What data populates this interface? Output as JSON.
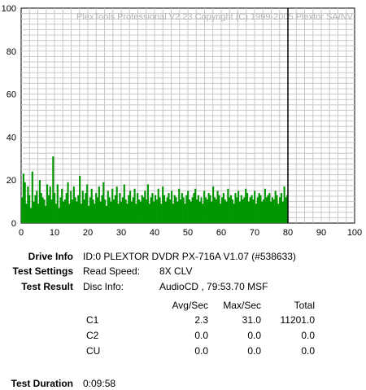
{
  "window": {
    "watermark": "PlexTools Professional V2.23 Copyright (C) 1999-2005 Plextor SA/NV"
  },
  "chart_data": {
    "type": "bar",
    "xlim": [
      0,
      100
    ],
    "ylim": [
      0,
      100
    ],
    "x_ticks": [
      0,
      10,
      20,
      30,
      40,
      50,
      60,
      70,
      80,
      90,
      100
    ],
    "y_ticks": [
      0,
      20,
      40,
      60,
      80,
      100
    ],
    "grid": true,
    "marker_line_x": 80,
    "series_color": "#009600",
    "marker_color": "#000000",
    "series": [
      {
        "values": [
          12,
          23,
          19,
          9,
          17,
          13,
          7,
          24,
          10,
          13,
          15,
          9,
          20,
          14,
          12,
          11,
          8,
          18,
          13,
          17,
          11,
          31,
          14,
          9,
          18,
          7,
          12,
          16,
          10,
          11,
          14,
          19,
          9,
          15,
          11,
          17,
          12,
          10,
          13,
          22,
          9,
          15,
          11,
          14,
          18,
          8,
          12,
          16,
          11,
          9,
          14,
          12,
          17,
          10,
          13,
          19,
          11,
          8,
          15,
          12,
          10,
          16,
          11,
          13,
          17,
          9,
          14,
          10,
          12,
          18,
          11,
          9,
          13,
          15,
          10,
          12,
          16,
          9,
          14,
          11,
          10,
          13,
          12,
          15,
          11,
          18,
          9,
          12,
          14,
          10,
          13,
          11,
          16,
          12,
          9,
          17,
          13,
          10,
          12,
          14,
          11,
          15,
          9,
          13,
          12,
          10,
          16,
          11,
          14,
          12,
          9,
          13,
          15,
          11,
          10,
          12,
          14,
          16,
          11,
          13,
          10,
          12,
          9,
          15,
          12,
          11,
          14,
          13,
          10,
          17,
          12,
          11,
          15,
          13,
          9,
          12,
          14,
          11,
          10,
          16,
          12,
          13,
          11,
          9,
          14,
          12,
          15,
          10,
          13,
          11,
          12,
          16,
          14,
          10,
          12,
          13,
          11,
          15,
          9,
          12,
          14,
          13,
          10,
          11,
          16,
          12,
          13,
          14,
          10,
          12,
          11,
          15,
          13,
          9,
          12,
          14,
          10,
          17,
          12,
          13
        ]
      }
    ]
  },
  "info": {
    "drive_info_label": "Drive Info",
    "drive_info_value": "ID:0 PLEXTOR DVDR PX-716A V1.07 (#538633)",
    "test_settings_label": "Test Settings",
    "read_speed_label": "Read Speed:",
    "read_speed_value": "8X CLV",
    "test_result_label": "Test Result",
    "disc_info_label": "Disc Info:",
    "disc_info_value": "AudioCD , 79:53.70 MSF",
    "col_avg": "Avg/Sec",
    "col_max": "Max/Sec",
    "col_total": "Total",
    "rows": [
      {
        "name": "C1",
        "avg": "2.3",
        "max": "31.0",
        "total": "11201.0"
      },
      {
        "name": "C2",
        "avg": "0.0",
        "max": "0.0",
        "total": "0.0"
      },
      {
        "name": "CU",
        "avg": "0.0",
        "max": "0.0",
        "total": "0.0"
      }
    ],
    "test_duration_label": "Test Duration",
    "test_duration_value": "0:09:58"
  }
}
